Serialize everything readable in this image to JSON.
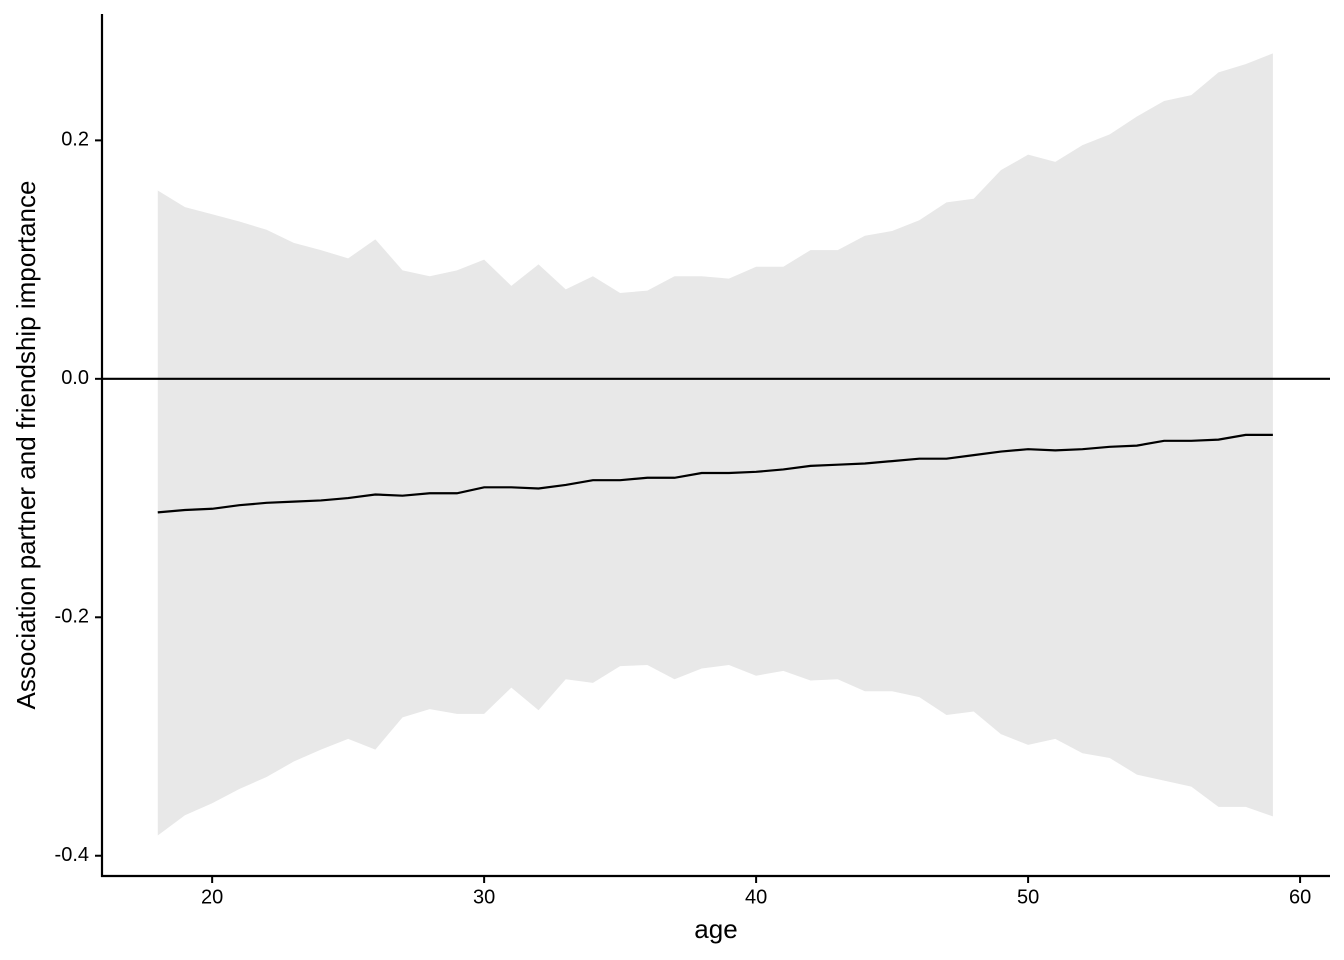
{
  "chart_data": {
    "type": "line-band",
    "x_label": "age",
    "y_label": "Association partner and friendship importance",
    "x": [
      18,
      19,
      20,
      21,
      22,
      23,
      24,
      25,
      26,
      27,
      28,
      29,
      30,
      31,
      32,
      33,
      34,
      35,
      36,
      37,
      38,
      39,
      40,
      41,
      42,
      43,
      44,
      45,
      46,
      47,
      48,
      49,
      50,
      51,
      52,
      53,
      54,
      55,
      56,
      57,
      58,
      59
    ],
    "line": {
      "color": "#000000",
      "values": [
        -0.112,
        -0.11,
        -0.109,
        -0.106,
        -0.104,
        -0.103,
        -0.102,
        -0.1,
        -0.097,
        -0.098,
        -0.096,
        -0.096,
        -0.091,
        -0.091,
        -0.092,
        -0.089,
        -0.085,
        -0.085,
        -0.083,
        -0.083,
        -0.079,
        -0.079,
        -0.078,
        -0.076,
        -0.073,
        -0.072,
        -0.071,
        -0.069,
        -0.067,
        -0.067,
        -0.064,
        -0.061,
        -0.059,
        -0.06,
        -0.059,
        -0.057,
        -0.056,
        -0.052,
        -0.052,
        -0.051,
        -0.047,
        -0.047
      ]
    },
    "band": {
      "color": "#e8e8e8",
      "upper": [
        0.158,
        0.144,
        0.138,
        0.132,
        0.125,
        0.114,
        0.108,
        0.101,
        0.117,
        0.091,
        0.086,
        0.091,
        0.1,
        0.078,
        0.096,
        0.075,
        0.086,
        0.072,
        0.074,
        0.086,
        0.086,
        0.084,
        0.094,
        0.094,
        0.108,
        0.108,
        0.12,
        0.124,
        0.133,
        0.148,
        0.151,
        0.175,
        0.188,
        0.182,
        0.196,
        0.205,
        0.22,
        0.233,
        0.238,
        0.257,
        0.264,
        0.273
      ],
      "lower": [
        -0.383,
        -0.366,
        -0.356,
        -0.344,
        -0.334,
        -0.321,
        -0.311,
        -0.302,
        -0.311,
        -0.284,
        -0.277,
        -0.281,
        -0.281,
        -0.259,
        -0.278,
        -0.252,
        -0.255,
        -0.241,
        -0.24,
        -0.252,
        -0.243,
        -0.24,
        -0.249,
        -0.245,
        -0.253,
        -0.252,
        -0.262,
        -0.262,
        -0.267,
        -0.282,
        -0.279,
        -0.298,
        -0.307,
        -0.302,
        -0.314,
        -0.318,
        -0.332,
        -0.337,
        -0.342,
        -0.359,
        -0.359,
        -0.367
      ]
    },
    "hline": 0,
    "xlim": [
      15.95,
      61.1
    ],
    "ylim": [
      -0.417,
      0.306
    ],
    "xticks": [
      20,
      30,
      40,
      50,
      60
    ],
    "yticks": [
      0.2,
      {
        "value": 0,
        "label": "0.0"
      },
      -0.2,
      -0.4
    ]
  }
}
